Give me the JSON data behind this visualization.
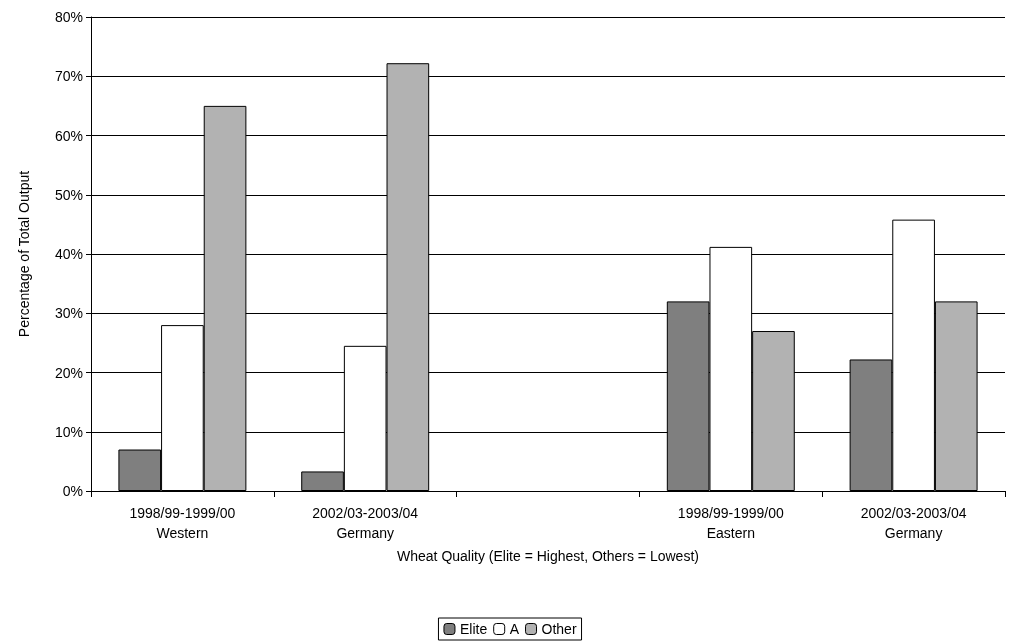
{
  "chart_data": {
    "type": "bar",
    "xlabel": "Wheat Quality (Elite = Highest, Others = Lowest)",
    "ylabel": "Percentage of Total Output",
    "categories": [
      "1998/99-1999/00\nWestern",
      "2002/03-2003/04\nGermany",
      null,
      "1998/99-1999/00\nEastern",
      "2002/03-2003/04\nGermany"
    ],
    "series": [
      {
        "name": "Elite",
        "color": "#7f7f7f",
        "values": [
          7,
          3.3,
          null,
          32,
          22.2
        ]
      },
      {
        "name": "A",
        "color": "#ffffff",
        "values": [
          28,
          24.5,
          null,
          41.2,
          45.8
        ]
      },
      {
        "name": "Other",
        "color": "#b2b2b2",
        "values": [
          65,
          72.2,
          null,
          27,
          32
        ]
      }
    ],
    "ylim": [
      0,
      80
    ],
    "yticks": [
      {
        "value": 0,
        "label": "0%"
      },
      {
        "value": 10,
        "label": "10%"
      },
      {
        "value": 20,
        "label": "20%"
      },
      {
        "value": 30,
        "label": "30%"
      },
      {
        "value": 40,
        "label": "40%"
      },
      {
        "value": 50,
        "label": "50%"
      },
      {
        "value": 60,
        "label": "60%"
      },
      {
        "value": 70,
        "label": "70%"
      },
      {
        "value": 80,
        "label": "80%"
      }
    ],
    "grid": "y",
    "legend": "bottom"
  }
}
